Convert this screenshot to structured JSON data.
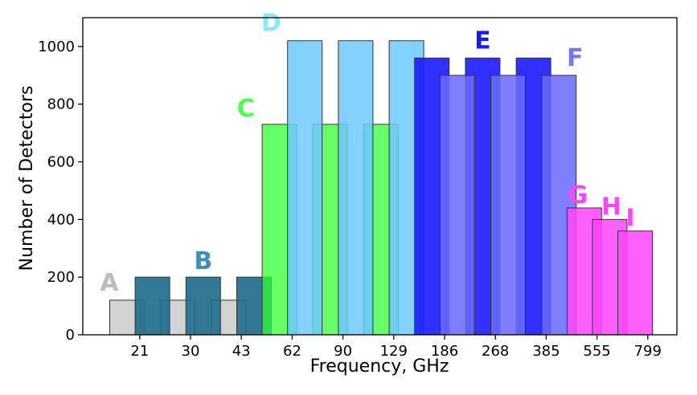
{
  "chart_data": {
    "type": "bar",
    "xlabel": "Frequency, GHz",
    "ylabel": "Number of Detectors",
    "ylim": [
      0,
      1100
    ],
    "yticks": [
      0,
      200,
      400,
      600,
      800,
      1000
    ],
    "x_tick_labels": [
      "21",
      "30",
      "43",
      "62",
      "90",
      "129",
      "186",
      "268",
      "385",
      "555",
      "799"
    ],
    "grid": false,
    "series": [
      {
        "name": "A",
        "color": "#c0c0c0",
        "opacity": 0.7,
        "label_color": "#bdbdbd",
        "x": [
          0,
          2,
          4
        ],
        "values": [
          120,
          120,
          120
        ]
      },
      {
        "name": "B",
        "color": "#1f6e8c",
        "opacity": 0.92,
        "label_color": "#3a8fbd",
        "x": [
          1,
          3,
          5
        ],
        "values": [
          200,
          200,
          200
        ]
      },
      {
        "name": "C",
        "color": "#33ff33",
        "opacity": 0.75,
        "label_color": "#4cff4c",
        "x": [
          6,
          8,
          10
        ],
        "values": [
          730,
          730,
          730
        ]
      },
      {
        "name": "D",
        "color": "#6ec8ff",
        "opacity": 0.85,
        "label_color": "#8fe6ff",
        "x": [
          7,
          9,
          11
        ],
        "values": [
          1020,
          1020,
          1020
        ]
      },
      {
        "name": "E",
        "color": "#1a1aff",
        "opacity": 0.9,
        "label_color": "#1a1aee",
        "x": [
          12,
          14,
          16
        ],
        "values": [
          960,
          960,
          960
        ]
      },
      {
        "name": "F",
        "color": "#6a6aff",
        "opacity": 0.85,
        "label_color": "#7777ee",
        "x": [
          13,
          15,
          17
        ],
        "values": [
          900,
          900,
          900
        ]
      },
      {
        "name": "G",
        "color": "#ff44ff",
        "opacity": 0.85,
        "label_color": "#ff44ff",
        "x": [
          18
        ],
        "values": [
          440
        ]
      },
      {
        "name": "H",
        "color": "#ff44ff",
        "opacity": 0.85,
        "label_color": "#ff44ff",
        "x": [
          19
        ],
        "values": [
          400
        ]
      },
      {
        "name": "I",
        "color": "#ff44ff",
        "opacity": 0.85,
        "label_color": "#ff44ff",
        "x": [
          20
        ],
        "values": [
          360
        ]
      }
    ]
  }
}
